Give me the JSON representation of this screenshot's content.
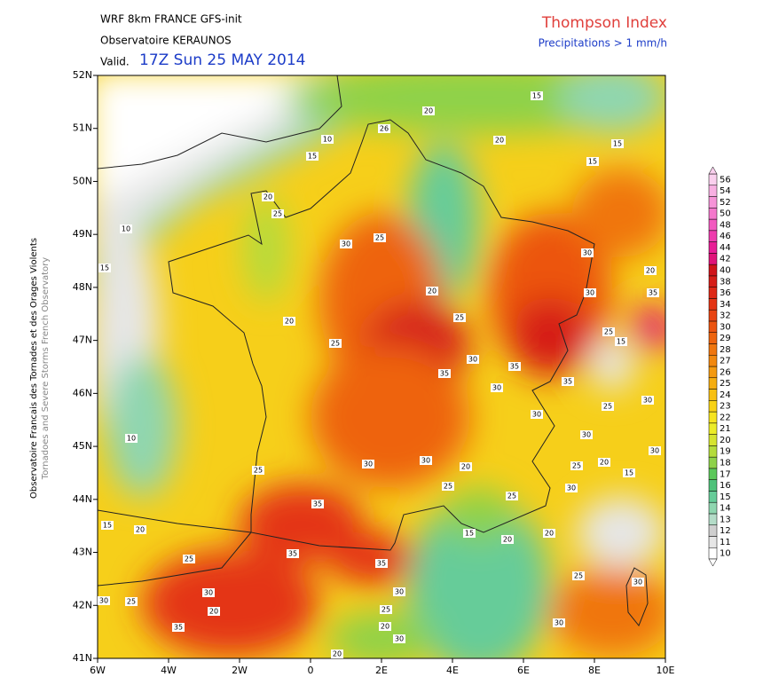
{
  "header": {
    "model": "WRF 8km FRANCE  GFS-init",
    "source": "Observatoire KERAUNOS",
    "valid_prefix": "Valid.",
    "valid_time": "17Z Sun 25 MAY 2014",
    "title": "Thompson Index",
    "subtitle": "Precipitations > 1 mm/h"
  },
  "side_text": {
    "french": "Observatoire Francais des Tornades et des Orages Violents",
    "english": "Tornadoes and Severe Storms French Observatory"
  },
  "x_axis_labels": [
    "6W",
    "4W",
    "2W",
    "0",
    "2E",
    "4E",
    "6E",
    "8E",
    "10E"
  ],
  "y_axis_labels": [
    "52N",
    "51N",
    "50N",
    "49N",
    "48N",
    "47N",
    "46N",
    "45N",
    "44N",
    "43N",
    "42N",
    "41N"
  ],
  "colorbar": {
    "levels": [
      10,
      11,
      12,
      13,
      14,
      15,
      16,
      17,
      18,
      19,
      20,
      21,
      22,
      23,
      24,
      25,
      26,
      27,
      28,
      29,
      30,
      32,
      34,
      36,
      38,
      40,
      42,
      44,
      46,
      48,
      50,
      52,
      54,
      56
    ],
    "colors": [
      "#ffffff",
      "#e6e6e6",
      "#cfcfcf",
      "#b4dcc8",
      "#8fd6b0",
      "#66cc99",
      "#4ec27a",
      "#5cc85a",
      "#8ed24a",
      "#b4dc3c",
      "#d6e430",
      "#ecec28",
      "#f6e41e",
      "#f8d214",
      "#f8c012",
      "#f6ae10",
      "#f49a10",
      "#f2880e",
      "#f0760e",
      "#ee640e",
      "#ec5410",
      "#e84412",
      "#e43414",
      "#de2816",
      "#d61e18",
      "#d0141a",
      "#e0147a",
      "#e81e96",
      "#ee3cae",
      "#f25ac0",
      "#f478cc",
      "#f694d8",
      "#f8b0e2",
      "#fad0ee"
    ]
  },
  "contour_labels": [
    15,
    20,
    26,
    10,
    15,
    20,
    15,
    15,
    20,
    25,
    10,
    30,
    25,
    15,
    30,
    20,
    20,
    30,
    35,
    20,
    25,
    25,
    30,
    15,
    25,
    30,
    35,
    35,
    35,
    30,
    25,
    30,
    30,
    30,
    10,
    30,
    25,
    30,
    30,
    20,
    25,
    20,
    15,
    25,
    25,
    30,
    35,
    15,
    20,
    15,
    20,
    20,
    35,
    35,
    25,
    25,
    30,
    30,
    30,
    30,
    25,
    20,
    25,
    35,
    20,
    30,
    20
  ]
}
